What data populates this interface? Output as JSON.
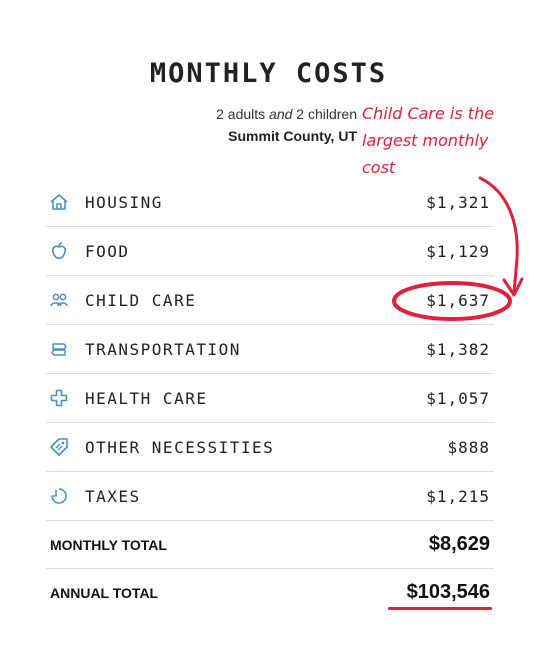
{
  "header": {
    "title": "MONTHLY COSTS",
    "adults_count": "2 adults",
    "and_word": "and",
    "children_count": "2 children",
    "county": "Summit County, UT"
  },
  "annotation": {
    "lines": [
      "Child Care is the",
      "largest monthly",
      "cost"
    ],
    "color": "#e0203a"
  },
  "costs": [
    {
      "icon": "house-icon",
      "label": "HOUSING",
      "value": "$1,321"
    },
    {
      "icon": "apple-icon",
      "label": "FOOD",
      "value": "$1,129"
    },
    {
      "icon": "people-icon",
      "label": "CHILD CARE",
      "value": "$1,637"
    },
    {
      "icon": "signpost-icon",
      "label": "TRANSPORTATION",
      "value": "$1,382"
    },
    {
      "icon": "medical-cross-icon",
      "label": "HEALTH CARE",
      "value": "$1,057"
    },
    {
      "icon": "tag-icon",
      "label": "OTHER NECESSITIES",
      "value": "$888"
    },
    {
      "icon": "taxes-icon",
      "label": "TAXES",
      "value": "$1,215"
    }
  ],
  "totals": {
    "monthly_label": "MONTHLY TOTAL",
    "monthly_value": "$8,629",
    "annual_label": "ANNUAL TOTAL",
    "annual_value": "$103,546"
  },
  "colors": {
    "icon": "#4a90c2",
    "highlight": "#e0203a"
  }
}
